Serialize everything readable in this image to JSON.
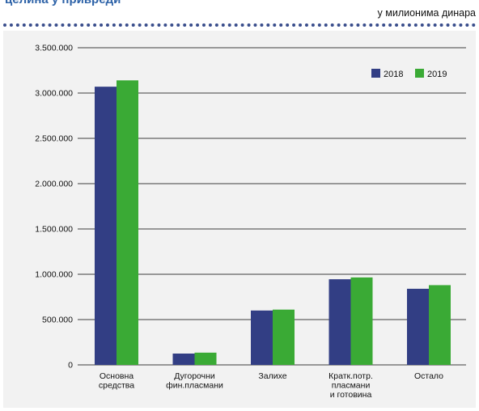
{
  "header": {
    "title": "целина у привреди",
    "unit_note": "у милионима динара"
  },
  "chart_data": {
    "type": "bar",
    "title": "целина у привреди",
    "subtitle": "у милионима динара",
    "categories": [
      [
        "Основна",
        "средства"
      ],
      [
        "Дугорочни",
        "фин.пласмани"
      ],
      [
        "Залихе"
      ],
      [
        "Кратк.потр.",
        "пласмани",
        "и готовина"
      ],
      [
        "Остало"
      ]
    ],
    "series": [
      {
        "name": "2018",
        "color": "#323e84",
        "values": [
          3070000,
          125000,
          600000,
          945000,
          840000
        ]
      },
      {
        "name": "2019",
        "color": "#3aaa35",
        "values": [
          3140000,
          135000,
          610000,
          965000,
          880000
        ]
      }
    ],
    "ylim": [
      0,
      3500000
    ],
    "yticks": [
      0,
      500000,
      1000000,
      1500000,
      2000000,
      2500000,
      3000000,
      3500000
    ],
    "ytick_labels": [
      "0",
      "500.000",
      "1.000.000",
      "1.500.000",
      "2.000.000",
      "2.500.000",
      "3.000.000",
      "3.500.000"
    ],
    "grid": true,
    "legend_position": "top-right",
    "xlabel": "",
    "ylabel": ""
  }
}
